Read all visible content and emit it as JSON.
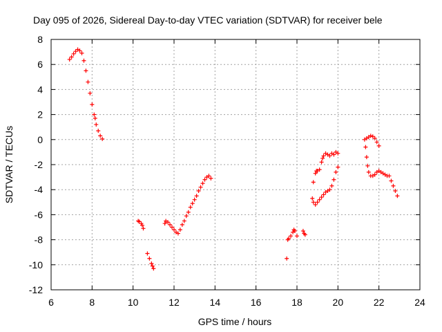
{
  "chart_data": {
    "type": "scatter",
    "title": "Day 095 of 2026, Sidereal Day-to-day VTEC variation (SDTVAR) for receiver bele",
    "xlabel": "GPS time / hours",
    "ylabel": "SDTVAR / TECUs",
    "xlim": [
      6,
      24
    ],
    "ylim": [
      -12,
      8
    ],
    "xticks": [
      6,
      8,
      10,
      12,
      14,
      16,
      18,
      20,
      22,
      24
    ],
    "yticks": [
      8,
      6,
      4,
      2,
      0,
      -2,
      -4,
      -6,
      -8,
      -10,
      -12
    ],
    "grid": true,
    "marker": "plus",
    "color": "#ff0000",
    "series": [
      {
        "name": "segment-1",
        "x": [
          6.9,
          7.0,
          7.1,
          7.2,
          7.3,
          7.4,
          7.5,
          7.6,
          7.7,
          7.8,
          7.9,
          8.0,
          8.1,
          8.15,
          8.2,
          8.3,
          8.4,
          8.5
        ],
        "y": [
          6.4,
          6.6,
          6.85,
          7.05,
          7.2,
          7.1,
          6.9,
          6.3,
          5.5,
          4.6,
          3.7,
          2.8,
          2.0,
          1.7,
          1.2,
          0.7,
          0.3,
          0.05
        ]
      },
      {
        "name": "segment-2",
        "x": [
          10.25,
          10.3,
          10.4,
          10.45,
          10.5
        ],
        "y": [
          -6.5,
          -6.55,
          -6.7,
          -6.85,
          -7.1
        ]
      },
      {
        "name": "segment-3",
        "x": [
          10.7,
          10.8,
          10.9,
          10.95,
          11.0
        ],
        "y": [
          -9.1,
          -9.5,
          -9.9,
          -10.1,
          -10.3
        ]
      },
      {
        "name": "segment-4",
        "x": [
          11.55,
          11.6,
          11.7,
          11.8,
          11.9,
          12.0,
          12.1,
          12.2,
          12.3,
          12.4,
          12.5,
          12.6,
          12.7,
          12.8,
          12.9,
          13.0,
          13.1,
          13.2,
          13.3,
          13.4,
          13.5,
          13.6,
          13.7,
          13.8
        ],
        "y": [
          -6.7,
          -6.5,
          -6.6,
          -6.8,
          -7.0,
          -7.2,
          -7.4,
          -7.5,
          -7.2,
          -6.8,
          -6.5,
          -6.1,
          -5.8,
          -5.4,
          -5.1,
          -4.8,
          -4.5,
          -4.1,
          -3.8,
          -3.5,
          -3.2,
          -3.0,
          -2.9,
          -3.1
        ]
      },
      {
        "name": "segment-5",
        "x": [
          17.5,
          17.55,
          17.6,
          17.7,
          17.8,
          17.85,
          17.9,
          18.0
        ],
        "y": [
          -9.5,
          -8.0,
          -7.9,
          -7.7,
          -7.4,
          -7.2,
          -7.3,
          -7.7
        ]
      },
      {
        "name": "segment-6",
        "x": [
          18.3,
          18.35,
          18.4
        ],
        "y": [
          -7.3,
          -7.5,
          -7.6
        ]
      },
      {
        "name": "segment-7",
        "x": [
          18.75,
          18.8,
          18.9,
          18.95,
          19.0,
          19.1,
          19.2,
          19.25,
          19.3,
          19.4,
          19.5,
          19.6,
          19.7,
          19.8,
          19.9,
          20.0
        ],
        "y": [
          -4.7,
          -3.4,
          -2.7,
          -2.5,
          -2.5,
          -2.4,
          -1.8,
          -1.5,
          -1.3,
          -1.1,
          -1.2,
          -1.3,
          -1.1,
          -1.2,
          -1.0,
          -1.1
        ]
      },
      {
        "name": "segment-8",
        "x": [
          18.8,
          18.9,
          19.0,
          19.1,
          19.2,
          19.3,
          19.4,
          19.5,
          19.6,
          19.7,
          19.8,
          19.9,
          20.0
        ],
        "y": [
          -5.0,
          -5.2,
          -5.0,
          -4.8,
          -4.6,
          -4.4,
          -4.2,
          -4.1,
          -4.0,
          -3.7,
          -3.2,
          -2.6,
          -2.2
        ]
      },
      {
        "name": "segment-9",
        "x": [
          21.3,
          21.4,
          21.5,
          21.6,
          21.7,
          21.8,
          21.9,
          22.0
        ],
        "y": [
          0.0,
          0.1,
          0.2,
          0.3,
          0.25,
          0.1,
          -0.2,
          -0.5
        ]
      },
      {
        "name": "segment-10",
        "x": [
          21.35,
          21.4,
          21.45,
          21.5,
          21.6,
          21.7,
          21.8,
          21.9,
          22.0,
          22.1,
          22.2,
          22.3,
          22.4,
          22.5,
          22.6,
          22.7,
          22.8,
          22.9
        ],
        "y": [
          -0.6,
          -1.4,
          -2.1,
          -2.6,
          -2.9,
          -2.9,
          -2.8,
          -2.6,
          -2.5,
          -2.6,
          -2.7,
          -2.8,
          -2.9,
          -2.9,
          -3.3,
          -3.7,
          -4.1,
          -4.5
        ]
      }
    ]
  }
}
